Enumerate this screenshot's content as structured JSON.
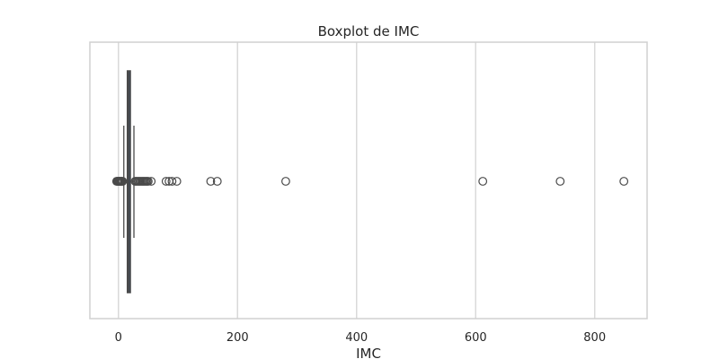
{
  "chart_data": {
    "type": "boxplot",
    "orientation": "horizontal",
    "title": "Boxplot de IMC",
    "xlabel": "IMC",
    "ylabel": "",
    "xlim": [
      -48,
      888
    ],
    "x_ticks": [
      0,
      200,
      400,
      600,
      800
    ],
    "x_tick_labels": [
      "0",
      "200",
      "400",
      "600",
      "800"
    ],
    "grid": true,
    "colors": {
      "box_fill": "#3a4e6b",
      "line": "#4a4a4a",
      "grid": "#d9d9d9",
      "frame": "#d0d0d0"
    },
    "box": {
      "q1": 15,
      "median": 17,
      "q3": 20,
      "whisker_low": 9,
      "whisker_high": 26
    },
    "outliers": [
      -3,
      -2,
      -1,
      0,
      1,
      2,
      3,
      4,
      5,
      6,
      7,
      28,
      30,
      32,
      34,
      36,
      38,
      40,
      42,
      44,
      46,
      48,
      50,
      55,
      80,
      85,
      90,
      98,
      155,
      166,
      281,
      612,
      742,
      849
    ]
  }
}
